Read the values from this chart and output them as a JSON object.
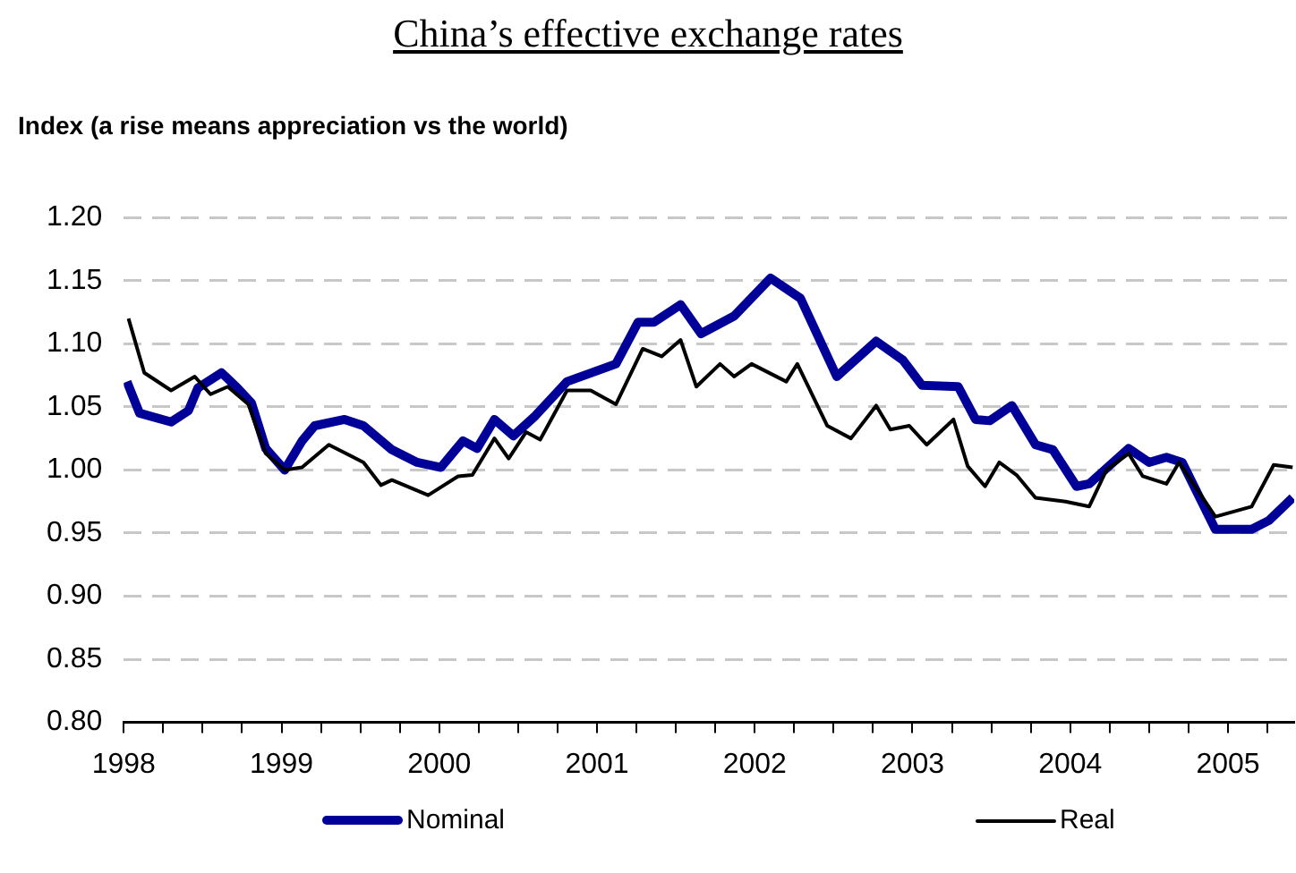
{
  "chart_data": {
    "type": "line",
    "title": "China’s effective exchange rates",
    "ylabel": "Index (a rise means appreciation vs the world)",
    "xlim": [
      1998,
      2005.42
    ],
    "xticks": [
      1998,
      {
        "value": 1998.25,
        "label": null
      },
      {
        "value": 1998.5,
        "label": null
      },
      {
        "value": 1998.75,
        "label": null
      },
      1999,
      {
        "value": 1999.25,
        "label": null
      },
      {
        "value": 1999.5,
        "label": null
      },
      {
        "value": 1999.75,
        "label": null
      },
      2000,
      {
        "value": 2000.25,
        "label": null
      },
      {
        "value": 2000.5,
        "label": null
      },
      {
        "value": 2000.75,
        "label": null
      },
      2001,
      {
        "value": 2001.25,
        "label": null
      },
      {
        "value": 2001.5,
        "label": null
      },
      {
        "value": 2001.75,
        "label": null
      },
      2002,
      {
        "value": 2002.25,
        "label": null
      },
      {
        "value": 2002.5,
        "label": null
      },
      {
        "value": 2002.75,
        "label": null
      },
      2003,
      {
        "value": 2003.25,
        "label": null
      },
      {
        "value": 2003.5,
        "label": null
      },
      {
        "value": 2003.75,
        "label": null
      },
      2004,
      {
        "value": 2004.25,
        "label": null
      },
      {
        "value": 2004.5,
        "label": null
      },
      {
        "value": 2004.75,
        "label": null
      },
      2005,
      {
        "value": 2005.25,
        "label": null
      }
    ],
    "ylim": [
      0.8,
      1.2
    ],
    "yticks": [
      {
        "value": 0.8,
        "label": "0.80"
      },
      {
        "value": 0.85,
        "label": "0.85"
      },
      {
        "value": 0.9,
        "label": "0.90"
      },
      {
        "value": 0.95,
        "label": "0.95"
      },
      {
        "value": 1.0,
        "label": "1.00"
      },
      {
        "value": 1.05,
        "label": "1.05"
      },
      {
        "value": 1.1,
        "label": "1.10"
      },
      {
        "value": 1.15,
        "label": "1.15"
      },
      {
        "value": 1.2,
        "label": "1.20"
      }
    ],
    "grid": "y",
    "legend": "bottom",
    "marker": "none",
    "line_style": "solid",
    "series": [
      {
        "name": "Nominal",
        "color": "#000099",
        "x": [
          1998.02,
          1998.1,
          1998.3,
          1998.41,
          1998.47,
          1998.62,
          1998.72,
          1998.81,
          1998.9,
          1999.02,
          1999.13,
          1999.21,
          1999.4,
          1999.52,
          1999.7,
          1999.86,
          2000.01,
          2000.15,
          2000.24,
          2000.35,
          2000.47,
          2000.61,
          2000.81,
          2001.12,
          2001.26,
          2001.36,
          2001.53,
          2001.66,
          2001.87,
          2002.1,
          2002.29,
          2002.52,
          2002.77,
          2002.94,
          2003.06,
          2003.29,
          2003.4,
          2003.49,
          2003.63,
          2003.78,
          2003.89,
          2004.04,
          2004.12,
          2004.37,
          2004.5,
          2004.61,
          2004.71,
          2004.92,
          2005.15,
          2005.26,
          2005.41
        ],
        "values": [
          1.07,
          1.045,
          1.038,
          1.047,
          1.065,
          1.077,
          1.065,
          1.053,
          1.017,
          1.0,
          1.023,
          1.035,
          1.04,
          1.035,
          1.016,
          1.006,
          1.002,
          1.023,
          1.017,
          1.04,
          1.027,
          1.043,
          1.07,
          1.084,
          1.117,
          1.117,
          1.131,
          1.108,
          1.122,
          1.152,
          1.136,
          1.074,
          1.102,
          1.087,
          1.067,
          1.066,
          1.04,
          1.039,
          1.051,
          1.02,
          1.016,
          0.987,
          0.989,
          1.017,
          1.006,
          1.01,
          1.006,
          0.953,
          0.953,
          0.96,
          0.978
        ]
      },
      {
        "name": "Real",
        "color": "#000000",
        "x": [
          1998.03,
          1998.13,
          1998.3,
          1998.45,
          1998.55,
          1998.66,
          1998.79,
          1998.9,
          1999.02,
          1999.13,
          1999.3,
          1999.52,
          1999.63,
          1999.7,
          1999.93,
          2000.12,
          2000.21,
          2000.35,
          2000.44,
          2000.55,
          2000.64,
          2000.81,
          2000.96,
          2001.12,
          2001.29,
          2001.41,
          2001.53,
          2001.63,
          2001.78,
          2001.87,
          2001.98,
          2002.2,
          2002.27,
          2002.46,
          2002.61,
          2002.77,
          2002.86,
          2002.98,
          2003.09,
          2003.26,
          2003.35,
          2003.46,
          2003.55,
          2003.66,
          2003.78,
          2003.97,
          2004.12,
          2004.23,
          2004.37,
          2004.46,
          2004.61,
          2004.69,
          2004.92,
          2005.15,
          2005.29,
          2005.41
        ],
        "values": [
          1.12,
          1.077,
          1.063,
          1.074,
          1.06,
          1.066,
          1.052,
          1.013,
          1.0,
          1.002,
          1.02,
          1.006,
          0.988,
          0.992,
          0.98,
          0.995,
          0.996,
          1.025,
          1.009,
          1.03,
          1.024,
          1.063,
          1.063,
          1.052,
          1.096,
          1.09,
          1.103,
          1.066,
          1.084,
          1.074,
          1.084,
          1.07,
          1.084,
          1.035,
          1.025,
          1.051,
          1.032,
          1.035,
          1.02,
          1.04,
          1.003,
          0.987,
          1.006,
          0.996,
          0.978,
          0.975,
          0.971,
          1.0,
          1.013,
          0.995,
          0.989,
          1.006,
          0.963,
          0.971,
          1.004,
          1.002
        ]
      }
    ]
  }
}
